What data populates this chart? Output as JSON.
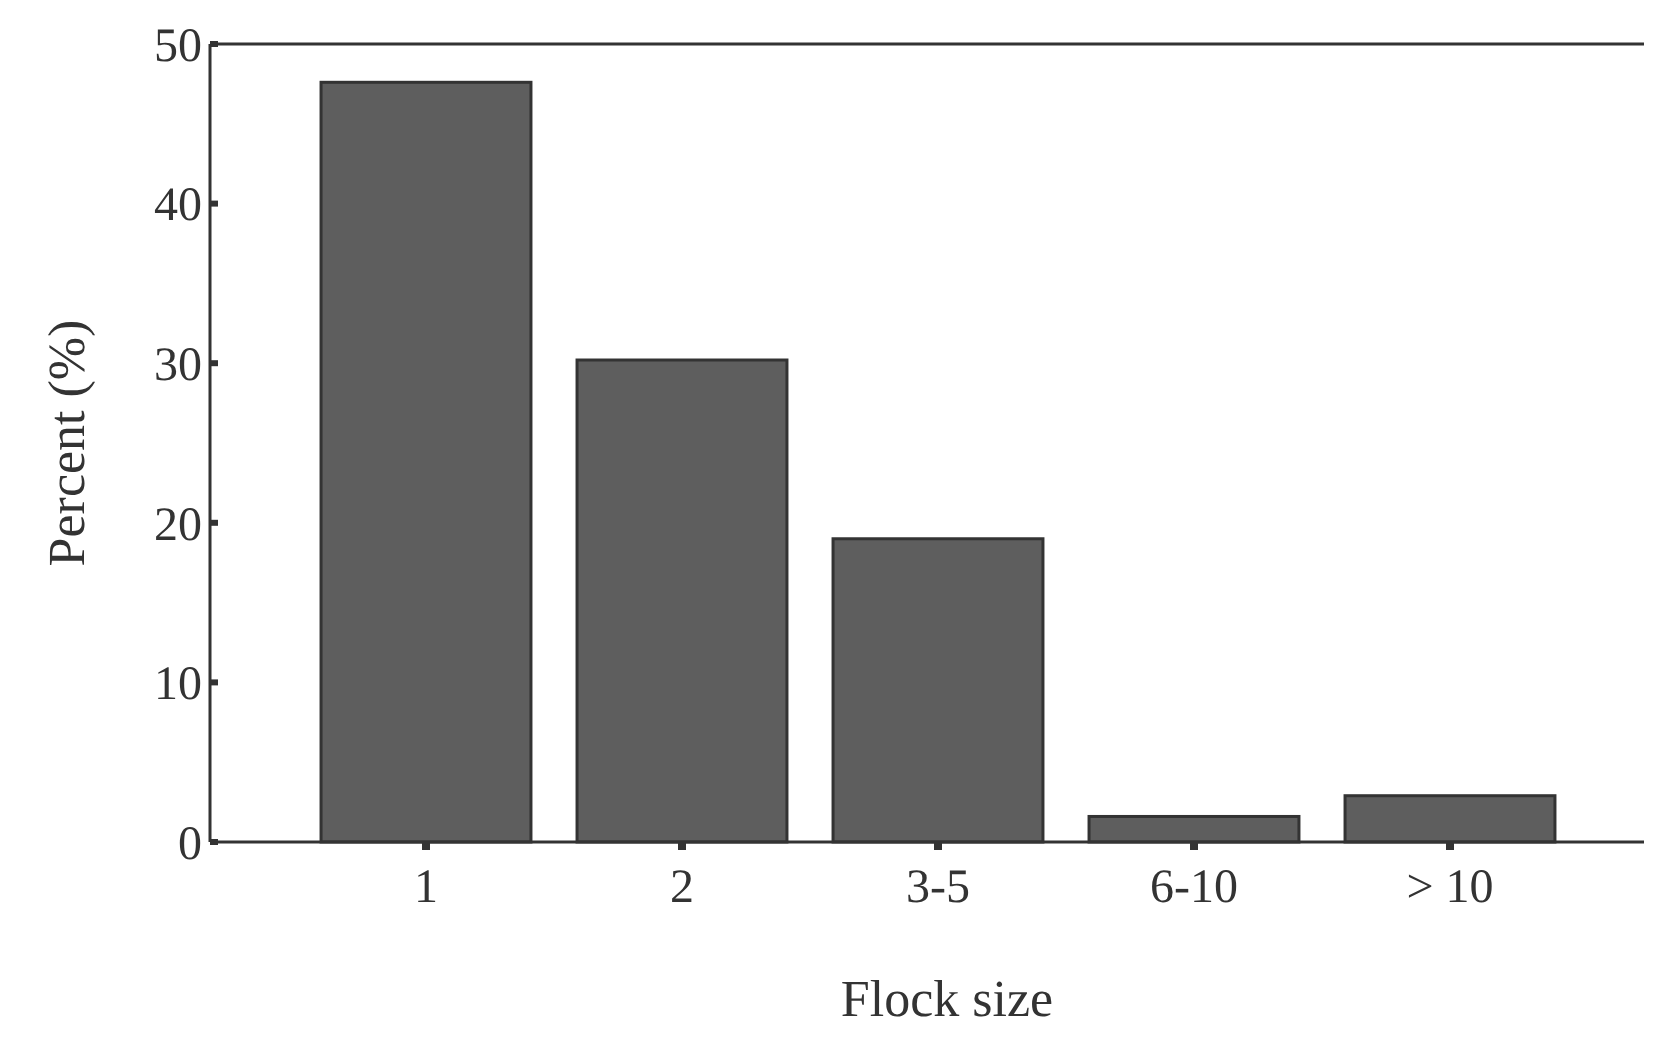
{
  "chart_data": {
    "type": "bar",
    "xlabel": "Flock size",
    "ylabel": "Percent (%)",
    "categories": [
      "1",
      "2",
      "3-5",
      "6-10",
      "> 10"
    ],
    "values": [
      47.6,
      30.2,
      19.0,
      1.6,
      2.9
    ],
    "color": "#5e5e5e",
    "ylim": [
      0,
      50
    ],
    "yticks": [
      0,
      10,
      20,
      30,
      40,
      50
    ],
    "grid": false
  }
}
